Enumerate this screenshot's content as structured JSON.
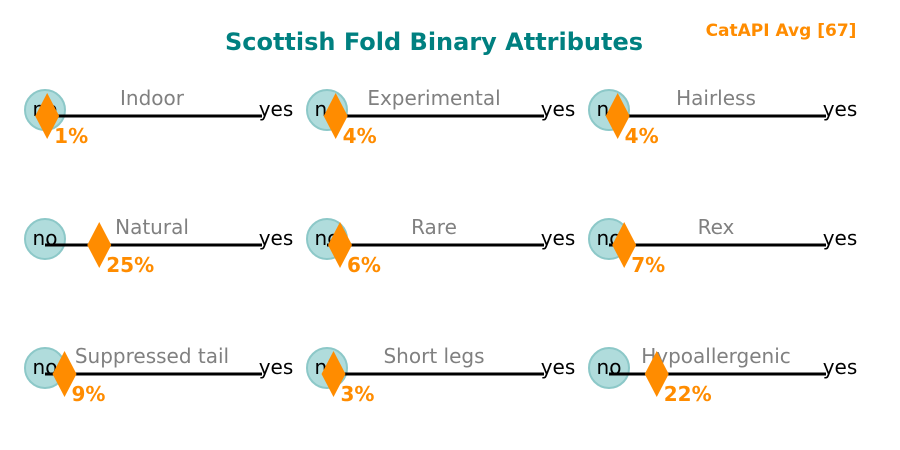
{
  "chart_data": {
    "type": "scatter",
    "title": "Scottish Fold Binary Attributes",
    "annotation": "CatAPI Avg [67]",
    "scale_min_label": "no",
    "scale_max_label": "yes",
    "value_unit": "%",
    "xlim": [
      0,
      100
    ],
    "layout": "3x3 grid",
    "attributes": [
      {
        "name": "Indoor",
        "value": 1
      },
      {
        "name": "Experimental",
        "value": 4
      },
      {
        "name": "Hairless",
        "value": 4
      },
      {
        "name": "Natural",
        "value": 25
      },
      {
        "name": "Rare",
        "value": 6
      },
      {
        "name": "Rex",
        "value": 7
      },
      {
        "name": "Suppressed tail",
        "value": 9
      },
      {
        "name": "Short legs",
        "value": 3
      },
      {
        "name": "Hypoallergenic",
        "value": 22
      }
    ]
  },
  "colors": {
    "title": "#008080",
    "accent": "#ff8c00",
    "circle_fill": "#b0dcdc",
    "circle_stroke": "#8cc8c8",
    "line": "#000000",
    "label": "#808080"
  }
}
